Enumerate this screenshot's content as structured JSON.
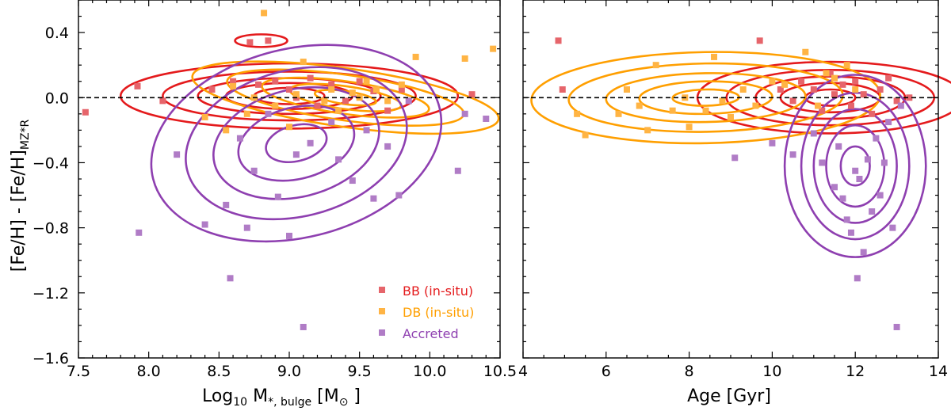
{
  "colors": {
    "bb": "#e41a1c",
    "db": "#ff9f00",
    "acc": "#8e3fb0",
    "bb_marker": "#e6656b",
    "db_marker": "#ffb444",
    "acc_marker": "#b07cc6"
  },
  "chart_data": [
    {
      "type": "scatter",
      "panel": "left",
      "xlabel": "Log10 M*,bulge [M⊙]",
      "xlabel_parts": {
        "log": "Log",
        "log_sub": "10",
        "m": " M",
        "m_sub": "*, bulge",
        "bracket_open": " [M",
        "sun_sub": "⊙",
        "bracket_close": " ]"
      },
      "ylabel": "[Fe/H] - [Fe/H]MZ*R",
      "ylabel_parts": {
        "main": "[Fe/H] - [Fe/H]",
        "sub": "MZ*R"
      },
      "xlim": [
        7.5,
        10.5
      ],
      "ylim": [
        -1.6,
        0.6
      ],
      "xticks": [
        "7.5",
        "8.0",
        "8.5",
        "9.0",
        "9.5",
        "10.0",
        "10.5"
      ],
      "yticks": [
        "0.4",
        "0.0",
        "−0.4",
        "−0.8",
        "−1.2",
        "−1.6"
      ],
      "hline": 0.0,
      "legend": {
        "entries": [
          "BB (in-situ)",
          "DB (in-situ)",
          "Accreted"
        ],
        "position": "lower-right"
      },
      "series": [
        {
          "name": "BB (in-situ)",
          "points": [
            [
              7.55,
              -0.09
            ],
            [
              7.92,
              0.07
            ],
            [
              8.1,
              -0.02
            ],
            [
              8.45,
              0.05
            ],
            [
              8.6,
              0.1
            ],
            [
              8.72,
              0.34
            ],
            [
              8.78,
              0.08
            ],
            [
              8.85,
              0.35
            ],
            [
              8.9,
              0.1
            ],
            [
              9.0,
              0.05
            ],
            [
              9.05,
              0.0
            ],
            [
              9.15,
              0.12
            ],
            [
              9.2,
              -0.05
            ],
            [
              9.3,
              0.08
            ],
            [
              9.4,
              -0.02
            ],
            [
              9.5,
              0.1
            ],
            [
              9.6,
              0.04
            ],
            [
              9.7,
              -0.08
            ],
            [
              9.8,
              0.05
            ],
            [
              10.3,
              0.02
            ]
          ]
        },
        {
          "name": "DB (in-situ)",
          "points": [
            [
              8.4,
              -0.12
            ],
            [
              8.55,
              -0.2
            ],
            [
              8.6,
              0.07
            ],
            [
              8.7,
              -0.1
            ],
            [
              8.75,
              0.0
            ],
            [
              8.82,
              0.52
            ],
            [
              8.9,
              -0.05
            ],
            [
              9.0,
              -0.18
            ],
            [
              9.05,
              0.02
            ],
            [
              9.1,
              0.22
            ],
            [
              9.25,
              -0.02
            ],
            [
              9.3,
              0.05
            ],
            [
              9.35,
              -0.08
            ],
            [
              9.45,
              0.03
            ],
            [
              9.5,
              0.0
            ],
            [
              9.55,
              0.1
            ],
            [
              9.62,
              0.05
            ],
            [
              9.7,
              -0.02
            ],
            [
              9.8,
              0.08
            ],
            [
              9.9,
              0.25
            ],
            [
              10.25,
              0.24
            ],
            [
              10.45,
              0.3
            ]
          ]
        },
        {
          "name": "Accreted",
          "points": [
            [
              7.93,
              -0.83
            ],
            [
              8.2,
              -0.35
            ],
            [
              8.4,
              -0.78
            ],
            [
              8.55,
              -0.66
            ],
            [
              8.58,
              -1.11
            ],
            [
              8.65,
              -0.25
            ],
            [
              8.7,
              -0.8
            ],
            [
              8.75,
              -0.45
            ],
            [
              8.85,
              -0.1
            ],
            [
              8.92,
              -0.61
            ],
            [
              9.0,
              -0.85
            ],
            [
              9.05,
              -0.35
            ],
            [
              9.1,
              -1.41
            ],
            [
              9.15,
              -0.28
            ],
            [
              9.3,
              -0.15
            ],
            [
              9.35,
              -0.38
            ],
            [
              9.45,
              -0.51
            ],
            [
              9.55,
              -0.2
            ],
            [
              9.6,
              -0.62
            ],
            [
              9.7,
              -0.3
            ],
            [
              9.78,
              -0.6
            ],
            [
              9.85,
              -0.02
            ],
            [
              10.2,
              -0.45
            ],
            [
              10.25,
              -0.1
            ],
            [
              10.4,
              -0.13
            ]
          ]
        }
      ]
    },
    {
      "type": "scatter",
      "panel": "right",
      "xlabel": "Age [Gyr]",
      "xlim": [
        4,
        14
      ],
      "ylim": [
        -1.6,
        0.6
      ],
      "xticks": [
        "4",
        "6",
        "8",
        "10",
        "12",
        "14"
      ],
      "hline": 0.0,
      "series": [
        {
          "name": "BB (in-situ)",
          "points": [
            [
              4.85,
              0.35
            ],
            [
              4.95,
              0.05
            ],
            [
              9.7,
              0.35
            ],
            [
              10.2,
              0.05
            ],
            [
              10.5,
              -0.02
            ],
            [
              10.7,
              0.1
            ],
            [
              11.0,
              0.05
            ],
            [
              11.2,
              -0.08
            ],
            [
              11.4,
              0.15
            ],
            [
              11.5,
              0.02
            ],
            [
              11.7,
              0.08
            ],
            [
              11.9,
              -0.05
            ],
            [
              12.0,
              0.1
            ],
            [
              12.2,
              0.02
            ],
            [
              12.4,
              -0.1
            ],
            [
              12.6,
              0.05
            ],
            [
              12.8,
              0.12
            ],
            [
              13.0,
              -0.02
            ],
            [
              13.3,
              0.0
            ]
          ]
        },
        {
          "name": "DB (in-situ)",
          "points": [
            [
              5.3,
              -0.1
            ],
            [
              5.5,
              -0.23
            ],
            [
              6.3,
              -0.1
            ],
            [
              6.5,
              0.05
            ],
            [
              6.8,
              -0.05
            ],
            [
              7.0,
              -0.2
            ],
            [
              7.2,
              0.2
            ],
            [
              7.6,
              -0.08
            ],
            [
              7.9,
              0.0
            ],
            [
              8.0,
              -0.18
            ],
            [
              8.4,
              -0.08
            ],
            [
              8.6,
              0.25
            ],
            [
              8.8,
              -0.02
            ],
            [
              9.0,
              -0.12
            ],
            [
              9.3,
              0.05
            ],
            [
              9.6,
              -0.05
            ],
            [
              10.0,
              0.1
            ],
            [
              10.3,
              0.08
            ],
            [
              10.8,
              0.28
            ],
            [
              11.1,
              -0.05
            ],
            [
              11.3,
              0.15
            ],
            [
              11.5,
              0.12
            ],
            [
              11.8,
              0.2
            ],
            [
              12.0,
              0.05
            ]
          ]
        },
        {
          "name": "Accreted",
          "points": [
            [
              9.1,
              -0.37
            ],
            [
              10.0,
              -0.28
            ],
            [
              10.5,
              -0.35
            ],
            [
              11.0,
              -0.22
            ],
            [
              11.2,
              -0.4
            ],
            [
              11.5,
              -0.55
            ],
            [
              11.6,
              -0.3
            ],
            [
              11.7,
              -0.62
            ],
            [
              11.8,
              -0.75
            ],
            [
              11.9,
              -0.83
            ],
            [
              12.0,
              -0.45
            ],
            [
              12.1,
              -0.5
            ],
            [
              12.2,
              -0.95
            ],
            [
              12.3,
              -0.38
            ],
            [
              12.4,
              -0.7
            ],
            [
              12.5,
              -0.25
            ],
            [
              12.6,
              -0.6
            ],
            [
              12.05,
              -1.11
            ],
            [
              12.7,
              -0.4
            ],
            [
              12.9,
              -0.8
            ],
            [
              13.0,
              -1.41
            ],
            [
              13.1,
              -0.05
            ],
            [
              12.8,
              -0.15
            ]
          ]
        }
      ]
    }
  ]
}
